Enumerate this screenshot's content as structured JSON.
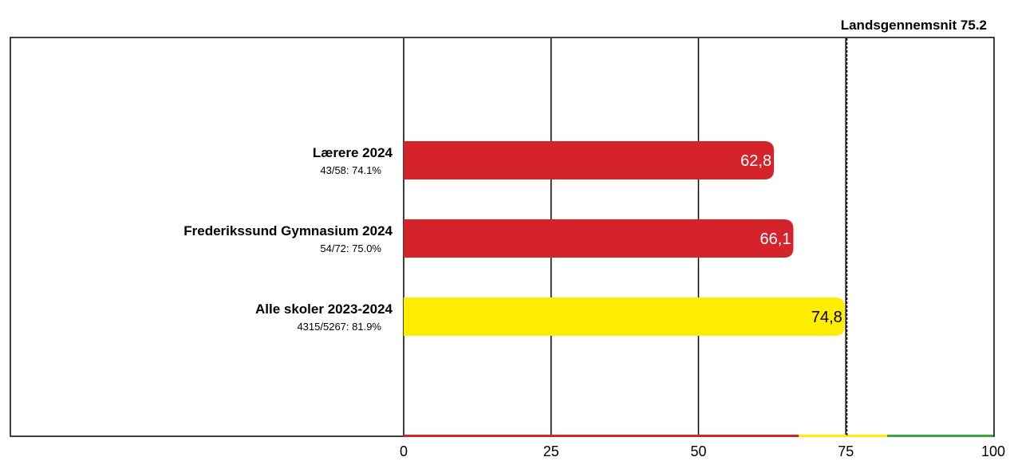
{
  "chart_data": {
    "type": "bar",
    "orientation": "horizontal",
    "reference_label": "Landsgennemsnit 75.2",
    "reference_value": 75.2,
    "categories": [
      {
        "label": "Lærere 2024",
        "sublabel": "43/58: 74.1%",
        "value": 62.8,
        "value_label": "62,8",
        "color": "#d4232b",
        "label_color": "#ffffff"
      },
      {
        "label": "Frederikssund Gymnasium 2024",
        "sublabel": "54/72: 75.0%",
        "value": 66.1,
        "value_label": "66,1",
        "color": "#d4232b",
        "label_color": "#ffffff"
      },
      {
        "label": "Alle skoler 2023-2024",
        "sublabel": "4315/5267: 81.9%",
        "value": 74.8,
        "value_label": "74,8",
        "color": "#ffee00",
        "label_color": "#000000"
      }
    ],
    "xlim": [
      0,
      100
    ],
    "x_ticks": [
      {
        "value": 0,
        "label": "0"
      },
      {
        "value": 25,
        "label": "25"
      },
      {
        "value": 50,
        "label": "50"
      },
      {
        "value": 75,
        "label": "75"
      },
      {
        "value": 100,
        "label": "100"
      }
    ],
    "grid": true,
    "color_bands": [
      {
        "from": 0,
        "to": 67,
        "color": "#d4232b"
      },
      {
        "from": 67,
        "to": 82,
        "color": "#ffee00"
      },
      {
        "from": 82,
        "to": 100,
        "color": "#3aa53a"
      }
    ]
  }
}
